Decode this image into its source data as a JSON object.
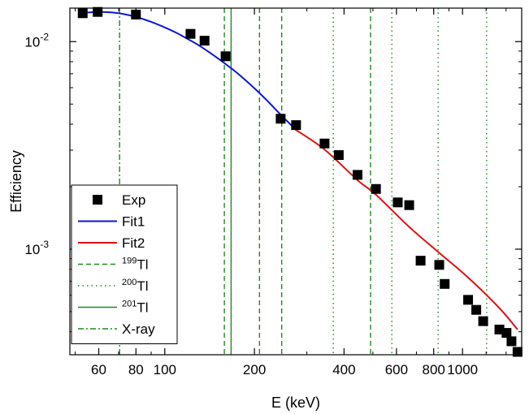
{
  "chart_data": {
    "type": "scatter",
    "xlabel": "E (keV)",
    "ylabel": "Efficiency",
    "xscale": "log",
    "yscale": "log",
    "xlim": [
      48,
      1580
    ],
    "ylim": [
      0.00031,
      0.0145
    ],
    "x_ticks": [
      {
        "value": 60,
        "label": "60"
      },
      {
        "value": 80,
        "label": "80"
      },
      {
        "value": 100,
        "label": "100"
      },
      {
        "value": 200,
        "label": "200"
      },
      {
        "value": 400,
        "label": "400"
      },
      {
        "value": 600,
        "label": "600"
      },
      {
        "value": 800,
        "label": "800"
      },
      {
        "value": 1000,
        "label": "1000"
      }
    ],
    "y_ticks": [
      {
        "value": 0.01,
        "base": "10",
        "exp": "-2"
      },
      {
        "value": 0.001,
        "base": "10",
        "exp": "-3"
      }
    ],
    "legend_position": "bottom-left",
    "series": [
      {
        "name": "Exp",
        "kind": "markers",
        "color": "#000000",
        "x": [
          53,
          59.5,
          80,
          122,
          136,
          160,
          245,
          276,
          344,
          384,
          444,
          512,
          606,
          662,
          723,
          835,
          871,
          1044,
          1112,
          1173,
          1330,
          1405,
          1460,
          1530
        ],
        "y": [
          0.0137,
          0.0139,
          0.0135,
          0.0109,
          0.0101,
          0.0085,
          0.00425,
          0.00396,
          0.00323,
          0.00284,
          0.00228,
          0.00195,
          0.00168,
          0.00163,
          0.00088,
          0.00084,
          0.00068,
          0.00057,
          0.00051,
          0.00045,
          0.00041,
          0.000395,
          0.00036,
          0.00032
        ]
      },
      {
        "name": "Fit1",
        "kind": "line",
        "color": "#0a17d6",
        "x": [
          53,
          60,
          70,
          80,
          90,
          100,
          110,
          120,
          130,
          140,
          150,
          160,
          170,
          180,
          200,
          220,
          245,
          276
        ],
        "y": [
          0.01375,
          0.0139,
          0.0137,
          0.01315,
          0.01245,
          0.0117,
          0.01098,
          0.01025,
          0.0096,
          0.00895,
          0.00835,
          0.0078,
          0.0073,
          0.00682,
          0.00596,
          0.00522,
          0.00445,
          0.00375
        ]
      },
      {
        "name": "Fit2",
        "kind": "line",
        "color": "#e01010",
        "x": [
          276,
          344,
          444,
          512,
          662,
          835,
          1044,
          1330,
          1530
        ],
        "y": [
          0.00375,
          0.00302,
          0.00215,
          0.00183,
          0.00128,
          0.00096,
          0.00073,
          0.00052,
          0.00041
        ]
      },
      {
        "name": "199Tl",
        "label_sup": "199",
        "label_base": "Tl",
        "kind": "vline",
        "dash": "dashed",
        "color": "#1f8a1f",
        "x": [
          208,
          247,
          491
        ]
      },
      {
        "name": "200Tl",
        "label_sup": "200",
        "label_base": "Tl",
        "kind": "vline",
        "dash": "dotted",
        "color": "#1f8a1f",
        "x": [
          368,
          579,
          828,
          1205
        ]
      },
      {
        "name": "201Tl",
        "label_sup": "201",
        "label_base": "Tl",
        "kind": "vline",
        "dash": "solid",
        "color": "#1f8a1f",
        "x": [
          167
        ]
      },
      {
        "name": "X-ray",
        "kind": "vline",
        "dash": "dashdot",
        "color": "#1f8a1f",
        "x": [
          70.5
        ]
      }
    ],
    "extra_vlines": [
      {
        "x": 158.5,
        "dash": "dashed",
        "color": "#1f8a1f"
      }
    ]
  }
}
